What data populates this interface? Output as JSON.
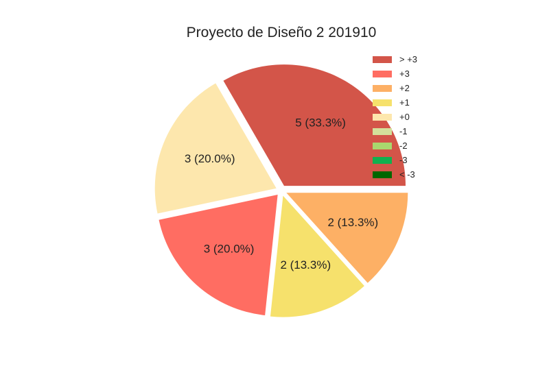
{
  "chart_data": {
    "type": "pie",
    "title": "Proyecto de Diseño 2 201910",
    "start_angle_deg": 0,
    "direction": "counterclockwise",
    "explode": true,
    "slices": [
      {
        "category": "> +3",
        "value": 5,
        "label": "5 (33.3%)",
        "color": "#d35549"
      },
      {
        "category": "+0",
        "value": 3,
        "label": "3 (20.0%)",
        "color": "#fde7ad"
      },
      {
        "category": "+3",
        "value": 3,
        "label": "3 (20.0%)",
        "color": "#ff6d62"
      },
      {
        "category": "+1",
        "value": 2,
        "label": "2 (13.3%)",
        "color": "#f6e16c"
      },
      {
        "category": "+2",
        "value": 2,
        "label": "2 (13.3%)",
        "color": "#fdb065"
      }
    ],
    "legend": {
      "position": "top-right",
      "items": [
        {
          "label": "> +3",
          "color": "#d35549"
        },
        {
          "label": "+3",
          "color": "#ff6d62"
        },
        {
          "label": "+2",
          "color": "#fdb065"
        },
        {
          "label": "+1",
          "color": "#f6e16c"
        },
        {
          "label": "+0",
          "color": "#fde7ad"
        },
        {
          "label": "-1",
          "color": "#d4e09b"
        },
        {
          "label": "-2",
          "color": "#a9d86e"
        },
        {
          "label": "-3",
          "color": "#11b14f"
        },
        {
          "label": "< -3",
          "color": "#006600"
        }
      ]
    }
  }
}
